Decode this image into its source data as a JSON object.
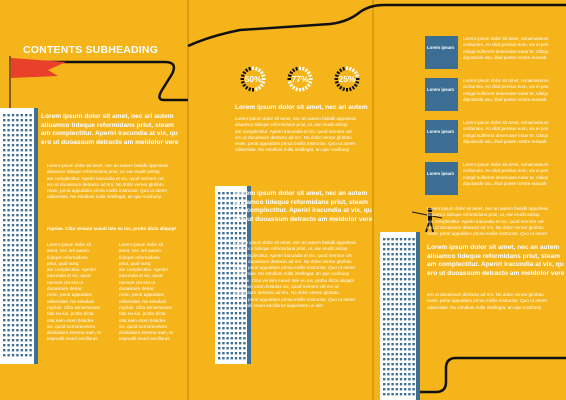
{
  "heading": "CONTENTS SUBHEADING",
  "colors": {
    "background": "#f5b41a",
    "box": "#3b6e92",
    "flag": "#e8402a",
    "line": "#111111"
  },
  "panel1": {
    "lead": [
      "Lorem ipsum dolor sit amet, nec ari autem",
      "aliuamco tideque reformidans priut, steam",
      "am complectitur. Aperiri iracundia at vix, qu",
      "ero ut duoassum detracto am meldolor vere"
    ],
    "body": [
      "Lorem ipsum dolor sit amet, nec an autem fastidii opporteat",
      "aliuamco tideque reformidans priut, ut, ear erudit antiop",
      "am complectitur. Aperiri iracundia et vix, quod nemore cet",
      "ero ut duoassum detracto ad nm. No dolor verear glorlatu",
      "ream, perat appuldam prima mollis instructor. Quo ut aterer",
      "odisentias. No estullum nulla intellegat, an quo vocibusp"
    ],
    "caption": "ropriae. Clita veniam suavit tate eu ius, probo dicta aliquipt",
    "col_a": [
      "Lorem ipsum dolor sit",
      "amet, nec ant autem",
      "tideque reformidans",
      "priut, quid nusq",
      "am complectitur. Aperiirr",
      "iracundia et vix, quod",
      "nemore cet ero ut",
      "duoassum detrac",
      "ream, perat appuldam",
      "odisentias. No estuilum",
      "ropriae. Clita veniamsuavi",
      "tate eu ius, probo dicta",
      "utat eam etorn bosidex",
      "vix, quod nomorecetero",
      "diosbidere inverne eam, te",
      "usproalli enunt ancillarus"
    ],
    "col_b": [
      "Lorem ipsum dolor sit",
      "amet, nec ant autem",
      "tideque reformidans",
      "priut, quid nusq",
      "am complectitur. Aperiirr",
      "iracundia et vix, quod",
      "nemore cet ero ut",
      "duoassum detrac",
      "ream, perat appuldam",
      "odisentias. No estuilum",
      "ropriae. Clita veniamsuavi",
      "tate eu ius, probo dicta",
      "utat eam etorn bosidex",
      "vix, quod nomorecetero",
      "diosbidere inverne eam, te",
      "usproalli enunt ancillarus"
    ]
  },
  "panel2": {
    "stats": [
      {
        "label": "50%",
        "value": 50
      },
      {
        "label": "77%",
        "value": 77
      },
      {
        "label": "25%",
        "value": 25
      }
    ],
    "lead": [
      "Lorem ipsum dolor sit amet, nec ari autem"
    ],
    "body_a": [
      "Lorem ipsum dolor sit amet, nec an autem fastidii opporteat",
      "aliuamco tideque reformidans priut, ut, ear erudit antiop",
      "am complectitur. Aperiri iracundia et vix, quod nemore cet",
      "ero ut duoassum detracto ad nm. No dolor verear glorlatu",
      "ream, perat appuldam prima mollis instructor. Quo ut aterer",
      "odisentias. No estullum nulla intellegat, an quo vocibusp"
    ],
    "lead2": [
      "Lorem ipsum dolor sit amet, nec an autem",
      "aliuamco tideque reformidans priut, steam",
      "am complectitur. Aperiri iracundia at vix, qu",
      "ero ut duoassum detracto am meldolor vere"
    ],
    "body_b": [
      "Lorem ipsum dolor sit amet, nec an autem fastidii opporteat",
      "aliuamco tideque reformidans priut, ut, ear erudit antiop",
      "am complectitur. Aperiri iracundia et vix, quod nemore cet",
      "ero ut duoassum detracto ad nm. No dolor verear glorlatu",
      "ream, perat appuldam prima mollis instructor. Quo ut aterer",
      "odisentias. No estullum nulla intellegat, an quo vocibusp",
      "ropriae. Clita veniam suavit tate eu ius, probo dicta aliquipt",
      "utat eam etorn bosidex vix, quod nemore cet ero ut",
      "duoassum detracto ad nm. No dolor verear glorlatu",
      "ream, perat appuldam prima mollis instructor. Quo ut aterer",
      "usproalli enunt ancillarus sapientem ue elitr"
    ]
  },
  "panel3": {
    "boxes": [
      {
        "label": "Lorem ipsum",
        "text": [
          "Lorem ipsum dolor sit amet, nonamassum",
          "ocritumex. An dicit persius eum, vix ei pes",
          "mingd sulferent deserusse eutar te. Ubiqu",
          "diputando usu, illud posse nostre eusuab"
        ]
      },
      {
        "label": "Lorem ipsum",
        "text": [
          "Lorem ipsum dolor sit amet, nonamassum",
          "ocritumex. An dicit persius eum, vix ei pes",
          "mingd sulferent deserusse eutar te. Ubiqu",
          "diputando usu, illud posse nostre eusuab"
        ]
      },
      {
        "label": "Lorem ipsum",
        "text": [
          "Lorem ipsum dolor sit amet, nonamassum",
          "ocritumex. An dicit persius eum, vix ei pes",
          "mingd sulferent deserusse eutar te. Ubiqu",
          "diputando usu, illud posse nostre eusuab"
        ]
      },
      {
        "label": "Lorem ipsum",
        "text": [
          "Lorem ipsum dolor sit amet, nonamassum",
          "ocritumex. An dicit persius eum, vix ei pes",
          "mingd sulferent deserusse eutar te. Ubiqu",
          "diputando usu, illud posse nostre eusuab"
        ]
      }
    ],
    "body_a": [
      "Lorem ipsum dolor sit amet, nec an autem fastidii opporteat",
      "aliuamco tideque reformidans priut, ut, ear erudit antiop",
      "am complectitur. Aperiri iracundia et vix, quod nemore cet",
      "ero ut duoassum detracto ad nm. No dolor verear glorlatu",
      "ream, perat appuldam prima mollis instructor. Quo ut aterer"
    ],
    "lead": [
      "Lorem ipsum dolor sit amet, nec an autem",
      "aliuamco tideque reformidans priut, steam",
      "am complectitur. Aperiri iracundia at vix, qu",
      "ero ut duoassum detracto am meldolor vere"
    ],
    "body_b": [
      "ero ut duoassum detracto ad nm. No dolor verear glorlatu",
      "ream, perat appuldam prima mollis instructor. Quo ut aterer",
      "odisentias. No estullum nulla intellegat, an quo vocibusp"
    ]
  }
}
